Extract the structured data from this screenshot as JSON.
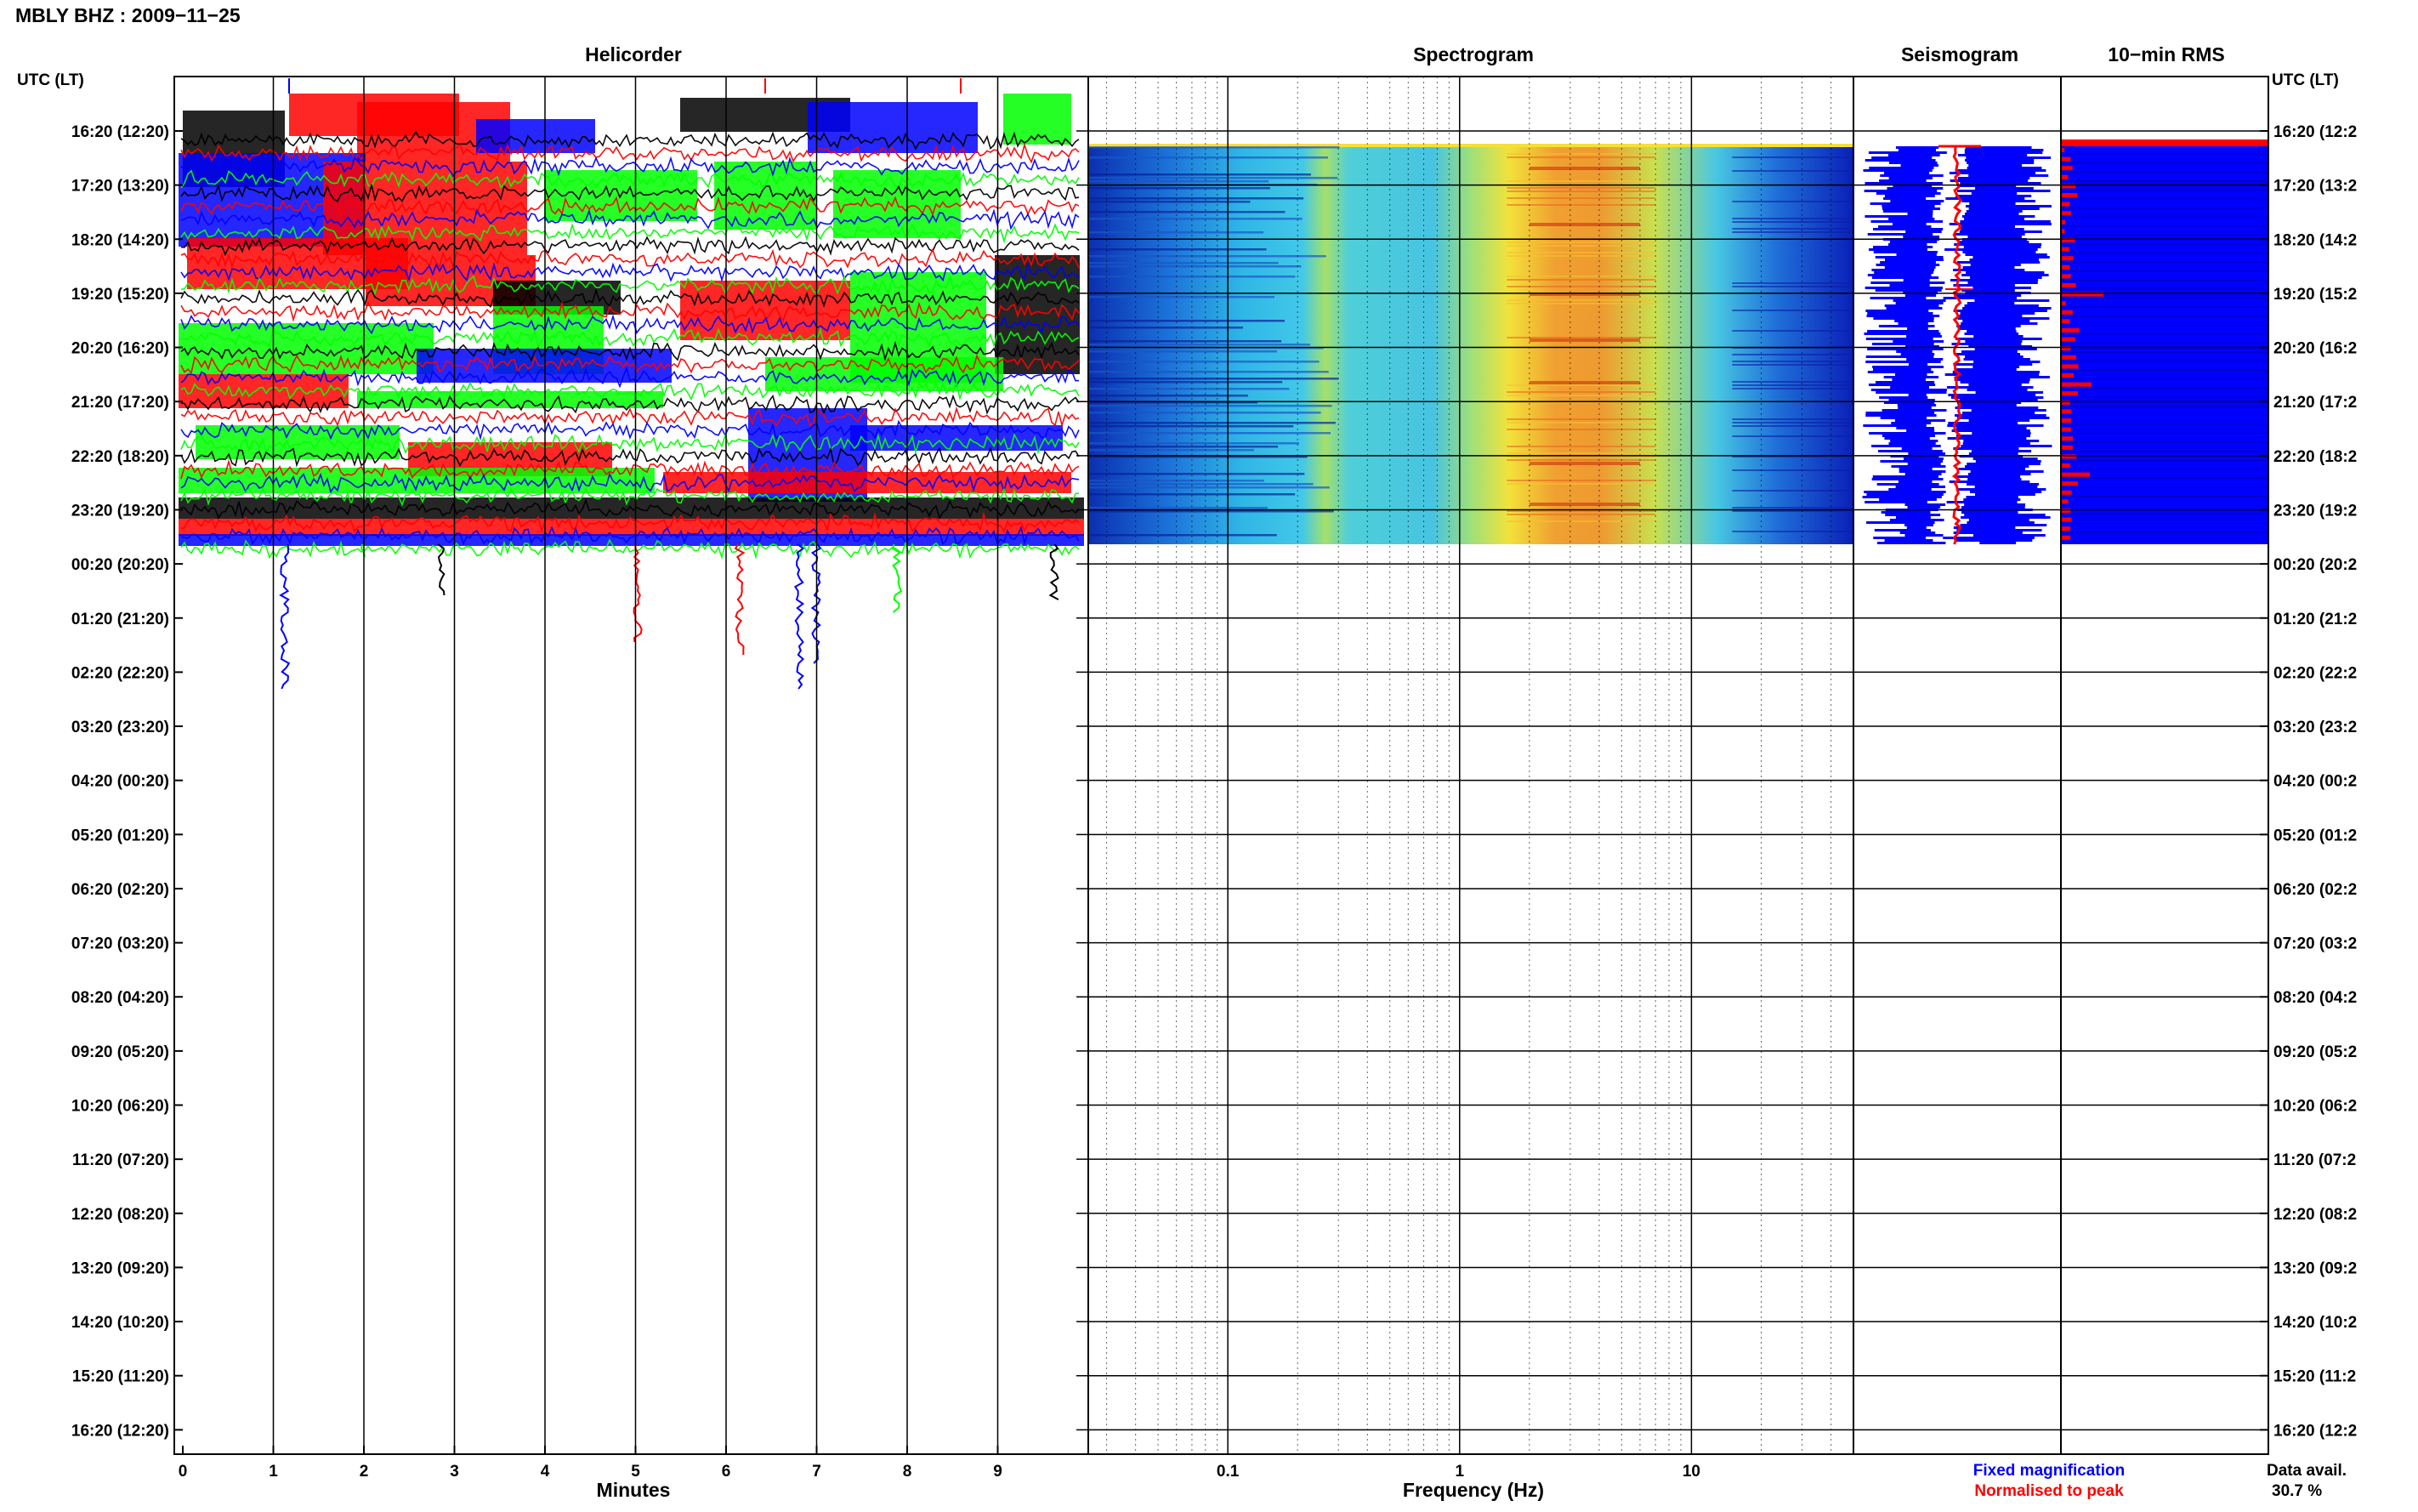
{
  "header": {
    "title": "MBLY BHZ : 2009−11−25"
  },
  "colors": {
    "helicorder_traces": [
      "#000000",
      "#ff0000",
      "#0000ff",
      "#00ff00"
    ],
    "fixed": "#0000ff",
    "normalised": "#ff0000",
    "spectrogram_background": "#0000ff"
  },
  "chart_data": [
    {
      "type": "line",
      "panel": "Helicorder",
      "title": "Helicorder",
      "xlabel": "Minutes",
      "ylabel": "UTC (LT)",
      "xlim": [
        0,
        10
      ],
      "x_ticks": [
        0,
        1,
        2,
        3,
        4,
        5,
        6,
        7,
        8,
        9
      ],
      "y_tick_labels": [
        "16:20 (12:20)",
        "17:20 (13:20)",
        "18:20 (14:20)",
        "19:20 (15:20)",
        "20:20 (16:20)",
        "21:20 (17:20)",
        "22:20 (18:20)",
        "23:20 (19:20)",
        "00:20 (20:20)",
        "01:20 (21:20)",
        "02:20 (22:20)",
        "03:20 (23:20)",
        "04:20 (00:20)",
        "05:20 (01:20)",
        "06:20 (02:20)",
        "07:20 (03:20)",
        "08:20 (04:20)",
        "09:20 (05:20)",
        "10:20 (06:20)",
        "11:20 (07:20)",
        "12:20 (08:20)",
        "13:20 (09:20)",
        "14:20 (10:20)",
        "15:20 (11:20)",
        "16:20 (12:20)"
      ],
      "trace_colors": [
        "black",
        "red",
        "blue",
        "green"
      ],
      "data_end": "00:20",
      "grid": true
    },
    {
      "type": "heatmap",
      "panel": "Spectrogram",
      "title": "Spectrogram",
      "xlabel": "Frequency (Hz)",
      "x_scale": "log",
      "xlim": [
        0.025,
        50
      ],
      "x_tick_labels": [
        "0.1",
        "1",
        "10"
      ],
      "x_tick_values": [
        0.1,
        1,
        10
      ],
      "energy_band_hz": [
        1.5,
        7
      ],
      "data_end": "00:20",
      "grid": true
    },
    {
      "type": "line",
      "panel": "Seismogram",
      "title": "Seismogram",
      "series": [
        {
          "name": "Fixed magnification",
          "color": "#0000ff"
        },
        {
          "name": "Normalised to peak",
          "color": "#ff0000"
        }
      ],
      "data_end": "00:20"
    },
    {
      "type": "bar",
      "panel": "10-min RMS",
      "title": "10−min RMS",
      "data_end": "00:20"
    }
  ],
  "right_axis": {
    "label": "UTC (LT)",
    "tick_labels": [
      "16:20 (12:2",
      "17:20 (13:2",
      "18:20 (14:2",
      "19:20 (15:2",
      "20:20 (16:2",
      "21:20 (17:2",
      "22:20 (18:2",
      "23:20 (19:2",
      "00:20 (20:2",
      "01:20 (21:2",
      "02:20 (22:2",
      "03:20 (23:2",
      "04:20 (00:2",
      "05:20 (01:2",
      "06:20 (02:2",
      "07:20 (03:2",
      "08:20 (04:2",
      "09:20 (05:2",
      "10:20 (06:2",
      "11:20 (07:2",
      "12:20 (08:2",
      "13:20 (09:2",
      "14:20 (10:2",
      "15:20 (11:2",
      "16:20 (12:2"
    ]
  },
  "legend": {
    "fixed": "Fixed magnification",
    "normalised": "Normalised to peak"
  },
  "availability": {
    "label": "Data avail.",
    "value": "30.7 %"
  }
}
